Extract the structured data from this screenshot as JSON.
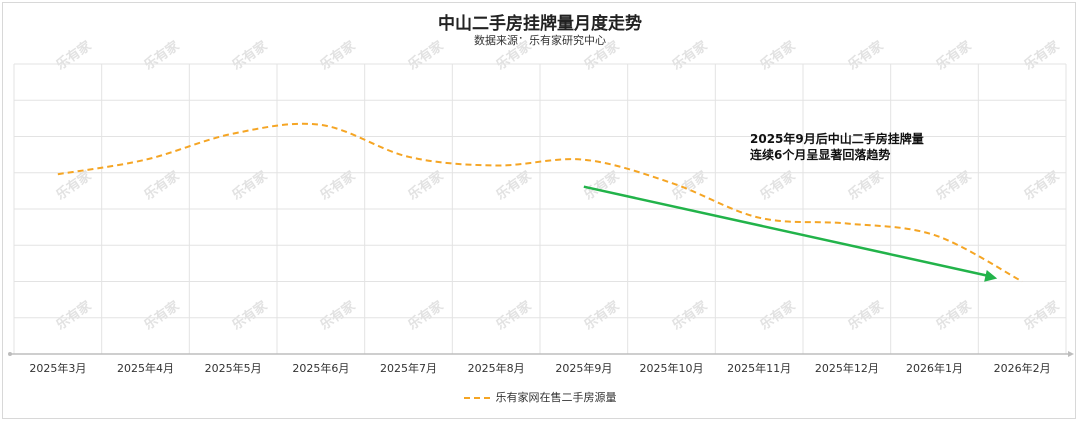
{
  "title": "中山二手房挂牌量月度走势",
  "subtitle": "数据来源：乐有家研究中心",
  "watermark": "乐有家",
  "annotation": {
    "lines": [
      "2025年9月后中山二手房挂牌量",
      "连续6个月呈显著回落趋势"
    ]
  },
  "colors": {
    "series": "#f5a524",
    "trend_arrow": "#22b34a",
    "grid": "#e3e3e3"
  },
  "chart_data": {
    "type": "line",
    "x": [
      "2025年3月",
      "2025年4月",
      "2025年5月",
      "2025年6月",
      "2025年7月",
      "2025年8月",
      "2025年9月",
      "2025年10月",
      "2025年11月",
      "2025年12月",
      "2026年1月",
      "2026年2月"
    ],
    "series": [
      {
        "name": "乐有家网在售二手房源量",
        "values": [
          62,
          67,
          76,
          79,
          68,
          65,
          67,
          59,
          47,
          45,
          41,
          25
        ],
        "style": "dashed"
      }
    ],
    "ylim": [
      0,
      100
    ],
    "y_tick_labels_shown": false,
    "grid": true,
    "legend": "bottom",
    "trend_arrow": {
      "from": "2025年9月",
      "to": "2026年2月",
      "direction": "down"
    }
  }
}
